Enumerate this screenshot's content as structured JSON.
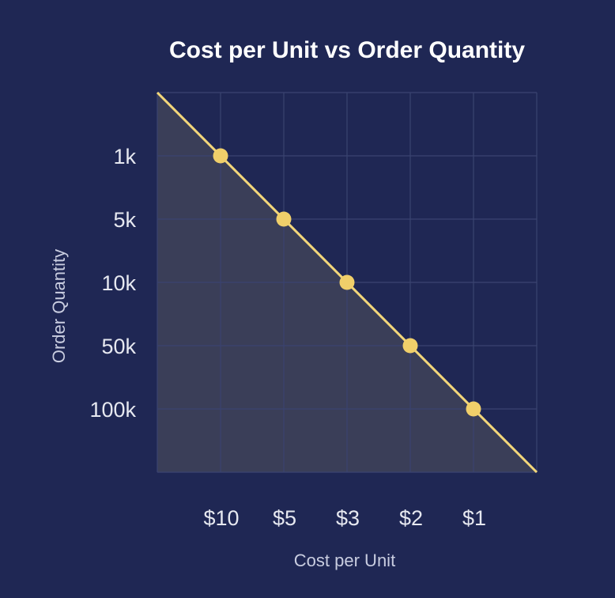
{
  "chart_data": {
    "type": "area",
    "title": "Cost per Unit vs Order Quantity",
    "xlabel": "Cost per Unit",
    "ylabel": "Order Quantity",
    "x_categories": [
      "$10",
      "$5",
      "$3",
      "$2",
      "$1"
    ],
    "y_categories": [
      "1k",
      "5k",
      "10k",
      "50k",
      "100k"
    ],
    "points": [
      {
        "x": "$10",
        "y": "1k"
      },
      {
        "x": "$5",
        "y": "5k"
      },
      {
        "x": "$3",
        "y": "10k"
      },
      {
        "x": "$2",
        "y": "50k"
      },
      {
        "x": "$1",
        "y": "100k"
      }
    ],
    "grid": true,
    "colors": {
      "background": "#1f2754",
      "line": "#f3d77a",
      "marker": "#f0cf6a",
      "area": "#3a3e58",
      "grid": "#3a4370"
    }
  }
}
